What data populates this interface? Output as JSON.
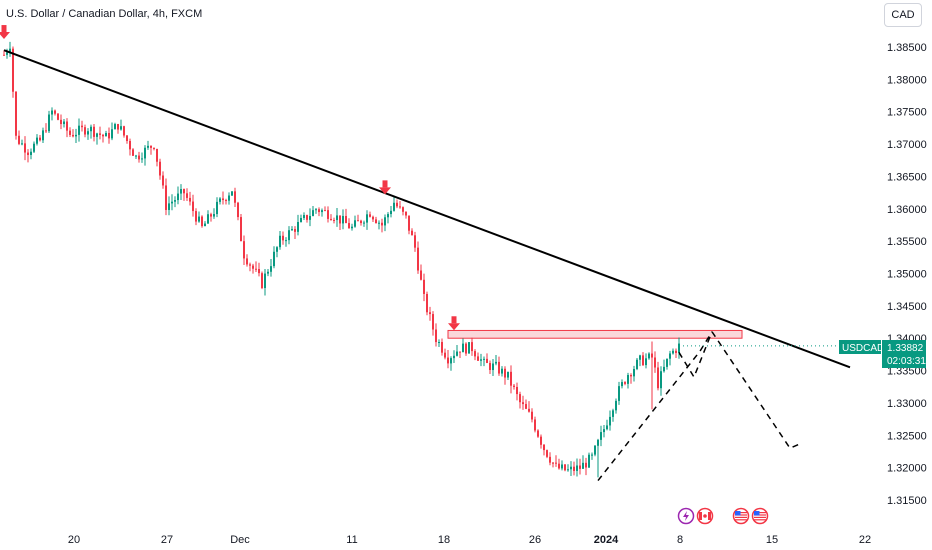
{
  "header": {
    "title": "U.S. Dollar / Canadian Dollar, 4h, FXCM",
    "currency_button": "CAD"
  },
  "price_tag": {
    "symbol": "USDCAD",
    "price": "1.33882",
    "countdown": "02:03:31",
    "color": "#089981"
  },
  "colors": {
    "up": "#089981",
    "down": "#f23645",
    "trendline": "#000000",
    "zone_fill": "#f8c9cd",
    "zone_stroke": "#f23645",
    "arrow": "#f23645"
  },
  "events": [
    "lightning-icon",
    "canada-flag-icon",
    "us-flag-icon",
    "us-flag-icon"
  ],
  "chart_data": {
    "type": "candlestick",
    "title": "U.S. Dollar / Canadian Dollar, 4h, FXCM",
    "ylim": [
      1.3145,
      1.3895
    ],
    "y_ticks": [
      "1.38500",
      "1.38000",
      "1.37500",
      "1.37000",
      "1.36500",
      "1.36000",
      "1.35500",
      "1.35000",
      "1.34500",
      "1.34000",
      "1.33500",
      "1.33000",
      "1.32500",
      "1.32000",
      "1.31500"
    ],
    "x_ticks": [
      {
        "label": "20",
        "bold": false
      },
      {
        "label": "27",
        "bold": false
      },
      {
        "label": "Dec",
        "bold": false
      },
      {
        "label": "11",
        "bold": false
      },
      {
        "label": "18",
        "bold": false
      },
      {
        "label": "26",
        "bold": false
      },
      {
        "label": "2024",
        "bold": true
      },
      {
        "label": "8",
        "bold": false
      },
      {
        "label": "15",
        "bold": false
      },
      {
        "label": "22",
        "bold": false
      }
    ],
    "last_price": 1.33882,
    "path_anchors": [
      [
        0,
        1.3838
      ],
      [
        2,
        1.3855
      ],
      [
        4,
        1.371
      ],
      [
        8,
        1.369
      ],
      [
        12,
        1.3705
      ],
      [
        16,
        1.375
      ],
      [
        22,
        1.3715
      ],
      [
        28,
        1.3725
      ],
      [
        34,
        1.371
      ],
      [
        38,
        1.373
      ],
      [
        44,
        1.368
      ],
      [
        50,
        1.37
      ],
      [
        54,
        1.3605
      ],
      [
        60,
        1.3625
      ],
      [
        66,
        1.357
      ],
      [
        72,
        1.361
      ],
      [
        76,
        1.363
      ],
      [
        80,
        1.353
      ],
      [
        86,
        1.3485
      ],
      [
        92,
        1.355
      ],
      [
        98,
        1.3575
      ],
      [
        104,
        1.36
      ],
      [
        110,
        1.359
      ],
      [
        116,
        1.357
      ],
      [
        122,
        1.3595
      ],
      [
        126,
        1.3575
      ],
      [
        130,
        1.361
      ],
      [
        134,
        1.3585
      ],
      [
        137,
        1.354
      ],
      [
        140,
        1.346
      ],
      [
        144,
        1.34
      ],
      [
        148,
        1.337
      ],
      [
        152,
        1.3385
      ],
      [
        156,
        1.3385
      ],
      [
        160,
        1.336
      ],
      [
        164,
        1.3355
      ],
      [
        168,
        1.334
      ],
      [
        172,
        1.33
      ],
      [
        176,
        1.3275
      ],
      [
        180,
        1.323
      ],
      [
        184,
        1.32
      ],
      [
        188,
        1.3195
      ],
      [
        192,
        1.32
      ],
      [
        196,
        1.3215
      ],
      [
        200,
        1.326
      ],
      [
        204,
        1.331
      ],
      [
        208,
        1.3345
      ],
      [
        212,
        1.3365
      ],
      [
        216,
        1.337
      ],
      [
        218,
        1.333
      ],
      [
        222,
        1.3375
      ],
      [
        225,
        1.3388
      ]
    ],
    "annotations": {
      "trendline": {
        "points": [
          [
            0,
            1.3845
          ],
          [
            282,
            1.3355
          ]
        ]
      },
      "resistance_zone": {
        "x": [
          148,
          246
        ],
        "y": [
          1.34,
          1.3412
        ]
      },
      "arrows": [
        [
          0,
          1.387
        ],
        [
          127,
          1.363
        ],
        [
          150,
          1.342
        ]
      ],
      "projection_up": [
        [
          198,
          1.318
        ],
        [
          232,
          1.338
        ],
        [
          236,
          1.341
        ]
      ],
      "projection_dashed_a": [
        [
          225,
          1.3378
        ],
        [
          230,
          1.334
        ],
        [
          236,
          1.341
        ]
      ],
      "projection_down": [
        [
          236,
          1.341
        ],
        [
          262,
          1.323
        ],
        [
          266,
          1.3238
        ]
      ],
      "projection_tail": [
        [
          262,
          1.323
        ],
        [
          266,
          1.324
        ]
      ]
    }
  }
}
